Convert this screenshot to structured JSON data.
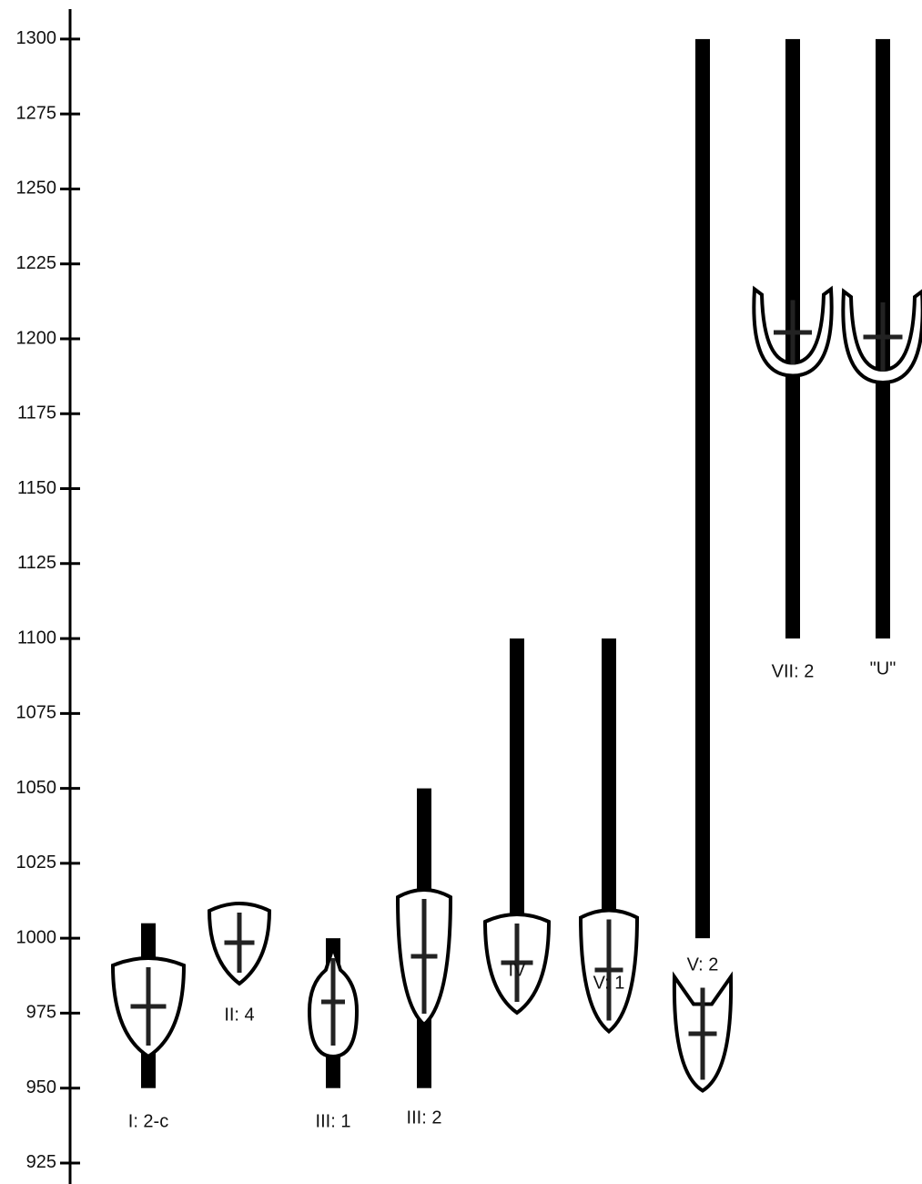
{
  "chart_data": {
    "type": "range",
    "categories": [
      "I: 2-c",
      "II: 4",
      "III: 1",
      "III: 2",
      "IV",
      "V: 1",
      "V: 2",
      "VII: 2",
      "\"U\""
    ],
    "start": [
      950,
      null,
      950,
      950,
      1000,
      995,
      1000,
      1100,
      1100
    ],
    "end": [
      1005,
      null,
      1000,
      1050,
      1100,
      1100,
      1300,
      1300,
      1300
    ],
    "color": "#000000",
    "ylim": [
      918,
      1310
    ],
    "yticks": [
      925,
      950,
      975,
      1000,
      1025,
      1050,
      1075,
      1100,
      1125,
      1150,
      1175,
      1200,
      1225,
      1250,
      1275,
      1300
    ]
  }
}
